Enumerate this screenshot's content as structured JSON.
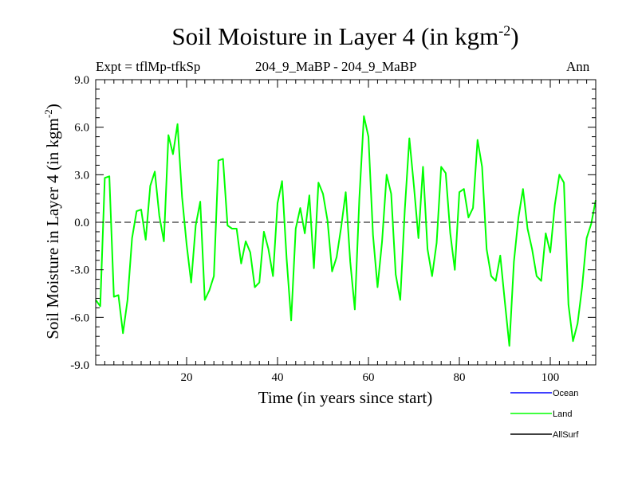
{
  "chart_data": {
    "type": "line",
    "title": "Soil Moisture in Layer 4 (in kgm",
    "title_sup": "-2",
    "title_close": ")",
    "subtitle_left": "Expt = tflMp-tfkSp",
    "subtitle_center": "204_9_MaBP - 204_9_MaBP",
    "subtitle_right": "Ann",
    "xlabel": "Time (in years since start)",
    "ylabel": "Soil Moisture in Layer 4 (in kgm",
    "ylabel_sup": "-2",
    "ylabel_close": ")",
    "xlim": [
      0,
      110
    ],
    "ylim": [
      -9,
      9
    ],
    "xticks": [
      20,
      40,
      60,
      80,
      100
    ],
    "yticks": [
      -9,
      -6,
      -3,
      0,
      3,
      6,
      9
    ],
    "ytick_labels": [
      "-9.0",
      "-6.0",
      "-3.0",
      "0.0",
      "3.0",
      "6.0",
      "9.0"
    ],
    "zero_line": true,
    "legend": [
      {
        "name": "Ocean",
        "color": "#0000ff"
      },
      {
        "name": "Land",
        "color": "#00ff00"
      },
      {
        "name": "AllSurf",
        "color": "#000000"
      }
    ],
    "series": [
      {
        "name": "Land",
        "color": "#00ff00",
        "x": [
          0,
          1,
          2,
          3,
          4,
          5,
          6,
          7,
          8,
          9,
          10,
          11,
          12,
          13,
          14,
          15,
          16,
          17,
          18,
          19,
          20,
          21,
          22,
          23,
          24,
          25,
          26,
          27,
          28,
          29,
          30,
          31,
          32,
          33,
          34,
          35,
          36,
          37,
          38,
          39,
          40,
          41,
          42,
          43,
          44,
          45,
          46,
          47,
          48,
          49,
          50,
          51,
          52,
          53,
          54,
          55,
          56,
          57,
          58,
          59,
          60,
          61,
          62,
          63,
          64,
          65,
          66,
          67,
          68,
          69,
          70,
          71,
          72,
          73,
          74,
          75,
          76,
          77,
          78,
          79,
          80,
          81,
          82,
          83,
          84,
          85,
          86,
          87,
          88,
          89,
          90,
          91,
          92,
          93,
          94,
          95,
          96,
          97,
          98,
          99,
          100,
          101,
          102,
          103,
          104,
          105,
          106,
          107,
          108,
          109,
          110
        ],
        "values": [
          -4.9,
          -5.3,
          2.8,
          2.9,
          -4.7,
          -4.6,
          -7.0,
          -4.9,
          -1.0,
          0.7,
          0.8,
          -1.1,
          2.3,
          3.2,
          0.4,
          -1.2,
          5.5,
          4.3,
          6.2,
          1.6,
          -1.4,
          -3.8,
          -0.2,
          1.3,
          -4.9,
          -4.3,
          -3.4,
          3.9,
          4.0,
          -0.2,
          -0.4,
          -0.4,
          -2.6,
          -1.2,
          -1.9,
          -4.1,
          -3.8,
          -0.6,
          -1.7,
          -3.4,
          1.2,
          2.6,
          -2.3,
          -6.2,
          -0.4,
          0.9,
          -0.7,
          1.7,
          -2.9,
          2.5,
          1.8,
          0.1,
          -3.1,
          -2.2,
          -0.3,
          1.9,
          -2.5,
          -5.5,
          1.5,
          6.7,
          5.4,
          -0.8,
          -4.1,
          -1.2,
          3.0,
          1.8,
          -3.3,
          -4.9,
          0.8,
          5.3,
          2.3,
          -1.0,
          3.5,
          -1.7,
          -3.4,
          -1.3,
          3.5,
          3.1,
          -0.7,
          -3.0,
          1.9,
          2.1,
          0.3,
          0.9,
          5.2,
          3.5,
          -1.7,
          -3.4,
          -3.7,
          -2.1,
          -5.0,
          -7.8,
          -2.5,
          0.3,
          2.1,
          -0.4,
          -1.7,
          -3.4,
          -3.7,
          -0.7,
          -1.9,
          1.1,
          3.0,
          2.5,
          -5.2,
          -7.5,
          -6.4,
          -4.1,
          -1.0,
          -0.1,
          1.4
        ]
      }
    ]
  }
}
